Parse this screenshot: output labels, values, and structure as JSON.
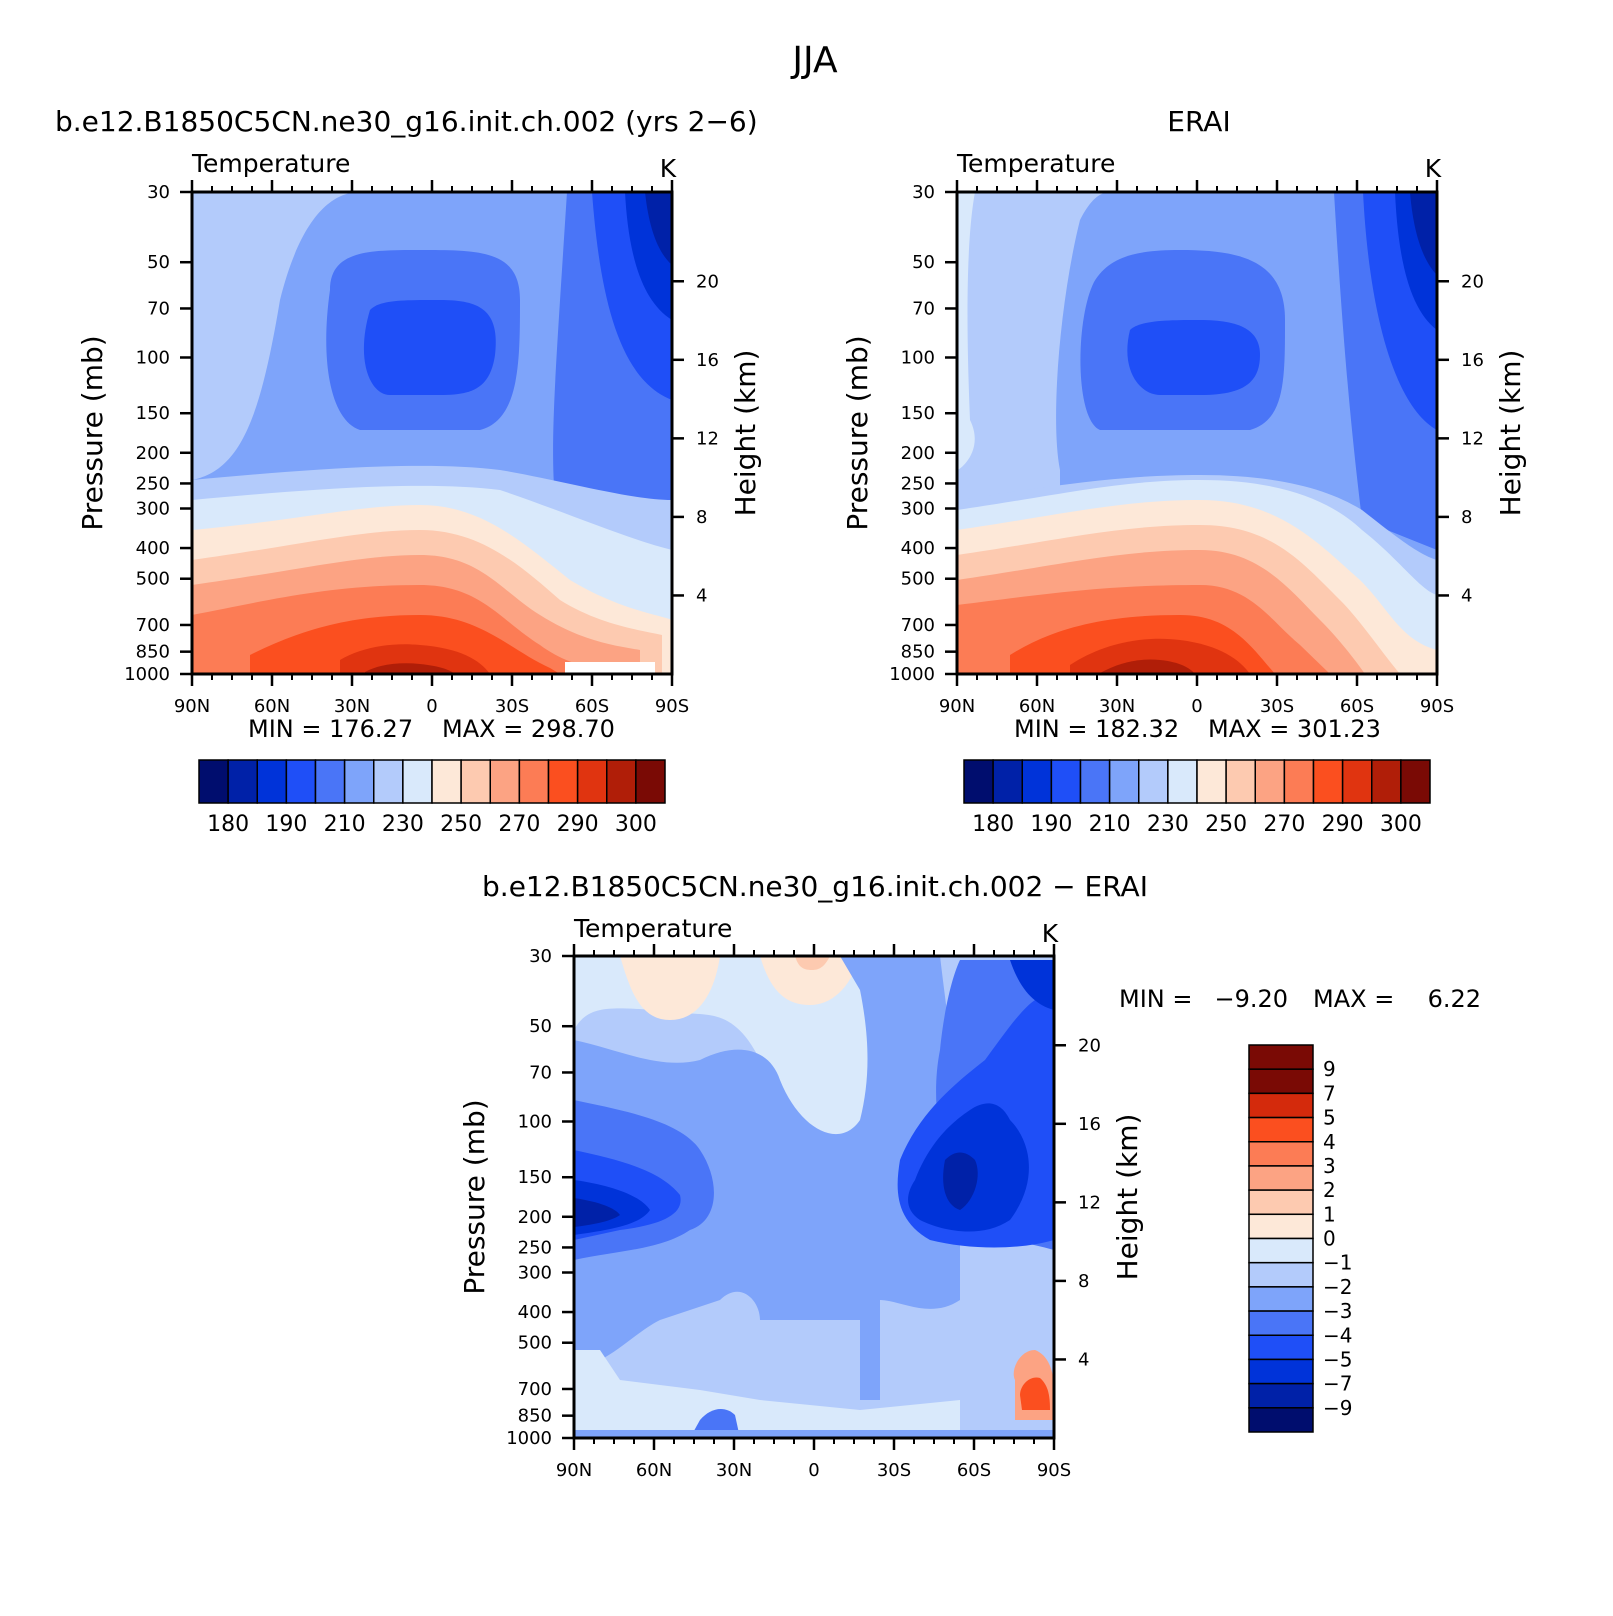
{
  "figure": {
    "title": "JJA"
  },
  "colors": {
    "abs_scale": [
      "#000d6e",
      "#0021a8",
      "#0033d9",
      "#1f4ff7",
      "#4a75f7",
      "#7ea4fa",
      "#b3cbfb",
      "#d9e9fb",
      "#fde8d8",
      "#fdcab0",
      "#fca383",
      "#fc7c55",
      "#fb4f1f",
      "#e03410",
      "#b01e08",
      "#7a0a05"
    ],
    "diff_scale": [
      "#000d6e",
      "#0021a8",
      "#0033d9",
      "#1f4ff7",
      "#4a75f7",
      "#7ea4fa",
      "#b3cbfb",
      "#d9e9fb",
      "#fde8d8",
      "#fdcab0",
      "#fca383",
      "#fc7c55",
      "#fb4f1f",
      "#d42a0c",
      "#7a0a05"
    ]
  },
  "chart_data": [
    {
      "type": "heatmap",
      "title": "b.e12.B1850C5CN.ne30_g16.init.ch.002 (yrs 2−6)",
      "subtitle": "Temperature",
      "units": "K",
      "ylabel": "Pressure (mb)",
      "ylabel2": "Height (km)",
      "x_ticks": [
        "90N",
        "60N",
        "30N",
        "0",
        "30S",
        "60S",
        "90S"
      ],
      "y_ticks": [
        30,
        50,
        70,
        100,
        150,
        200,
        250,
        300,
        400,
        500,
        700,
        850,
        1000
      ],
      "y2_ticks": [
        20,
        16,
        12,
        8,
        4
      ],
      "ylim": [
        1000,
        30
      ],
      "min_text": "MIN = 176.27",
      "max_text": "MAX = 298.70",
      "min": 176.27,
      "max": 298.7,
      "colorbar_labels": [
        "180",
        "190",
        "210",
        "230",
        "250",
        "270",
        "290",
        "300"
      ],
      "colorbar_levels": 16
    },
    {
      "type": "heatmap",
      "title": "ERAI",
      "subtitle": "Temperature",
      "units": "K",
      "ylabel": "Pressure (mb)",
      "ylabel2": "Height (km)",
      "x_ticks": [
        "90N",
        "60N",
        "30N",
        "0",
        "30S",
        "60S",
        "90S"
      ],
      "y_ticks": [
        30,
        50,
        70,
        100,
        150,
        200,
        250,
        300,
        400,
        500,
        700,
        850,
        1000
      ],
      "y2_ticks": [
        20,
        16,
        12,
        8,
        4
      ],
      "ylim": [
        1000,
        30
      ],
      "min_text": "MIN = 182.32",
      "max_text": "MAX = 301.23",
      "min": 182.32,
      "max": 301.23,
      "colorbar_labels": [
        "180",
        "190",
        "210",
        "230",
        "250",
        "270",
        "290",
        "300"
      ],
      "colorbar_levels": 16
    },
    {
      "type": "heatmap",
      "title": "b.e12.B1850C5CN.ne30_g16.init.ch.002 − ERAI",
      "subtitle": "Temperature",
      "units": "K",
      "ylabel": "Pressure (mb)",
      "ylabel2": "Height (km)",
      "x_ticks": [
        "90N",
        "60N",
        "30N",
        "0",
        "30S",
        "60S",
        "90S"
      ],
      "y_ticks": [
        30,
        50,
        70,
        100,
        150,
        200,
        250,
        300,
        400,
        500,
        700,
        850,
        1000
      ],
      "y2_ticks": [
        20,
        16,
        12,
        8,
        4
      ],
      "ylim": [
        1000,
        30
      ],
      "min_label": "MIN =",
      "min_value": "−9.20",
      "max_label": "MAX =",
      "max_value": "6.22",
      "min": -9.2,
      "max": 6.22,
      "colorbar_labels": [
        "9",
        "7",
        "5",
        "4",
        "3",
        "2",
        "1",
        "0",
        "−1",
        "−2",
        "−3",
        "−4",
        "−5",
        "−7",
        "−9"
      ],
      "colorbar_levels": 16
    }
  ]
}
